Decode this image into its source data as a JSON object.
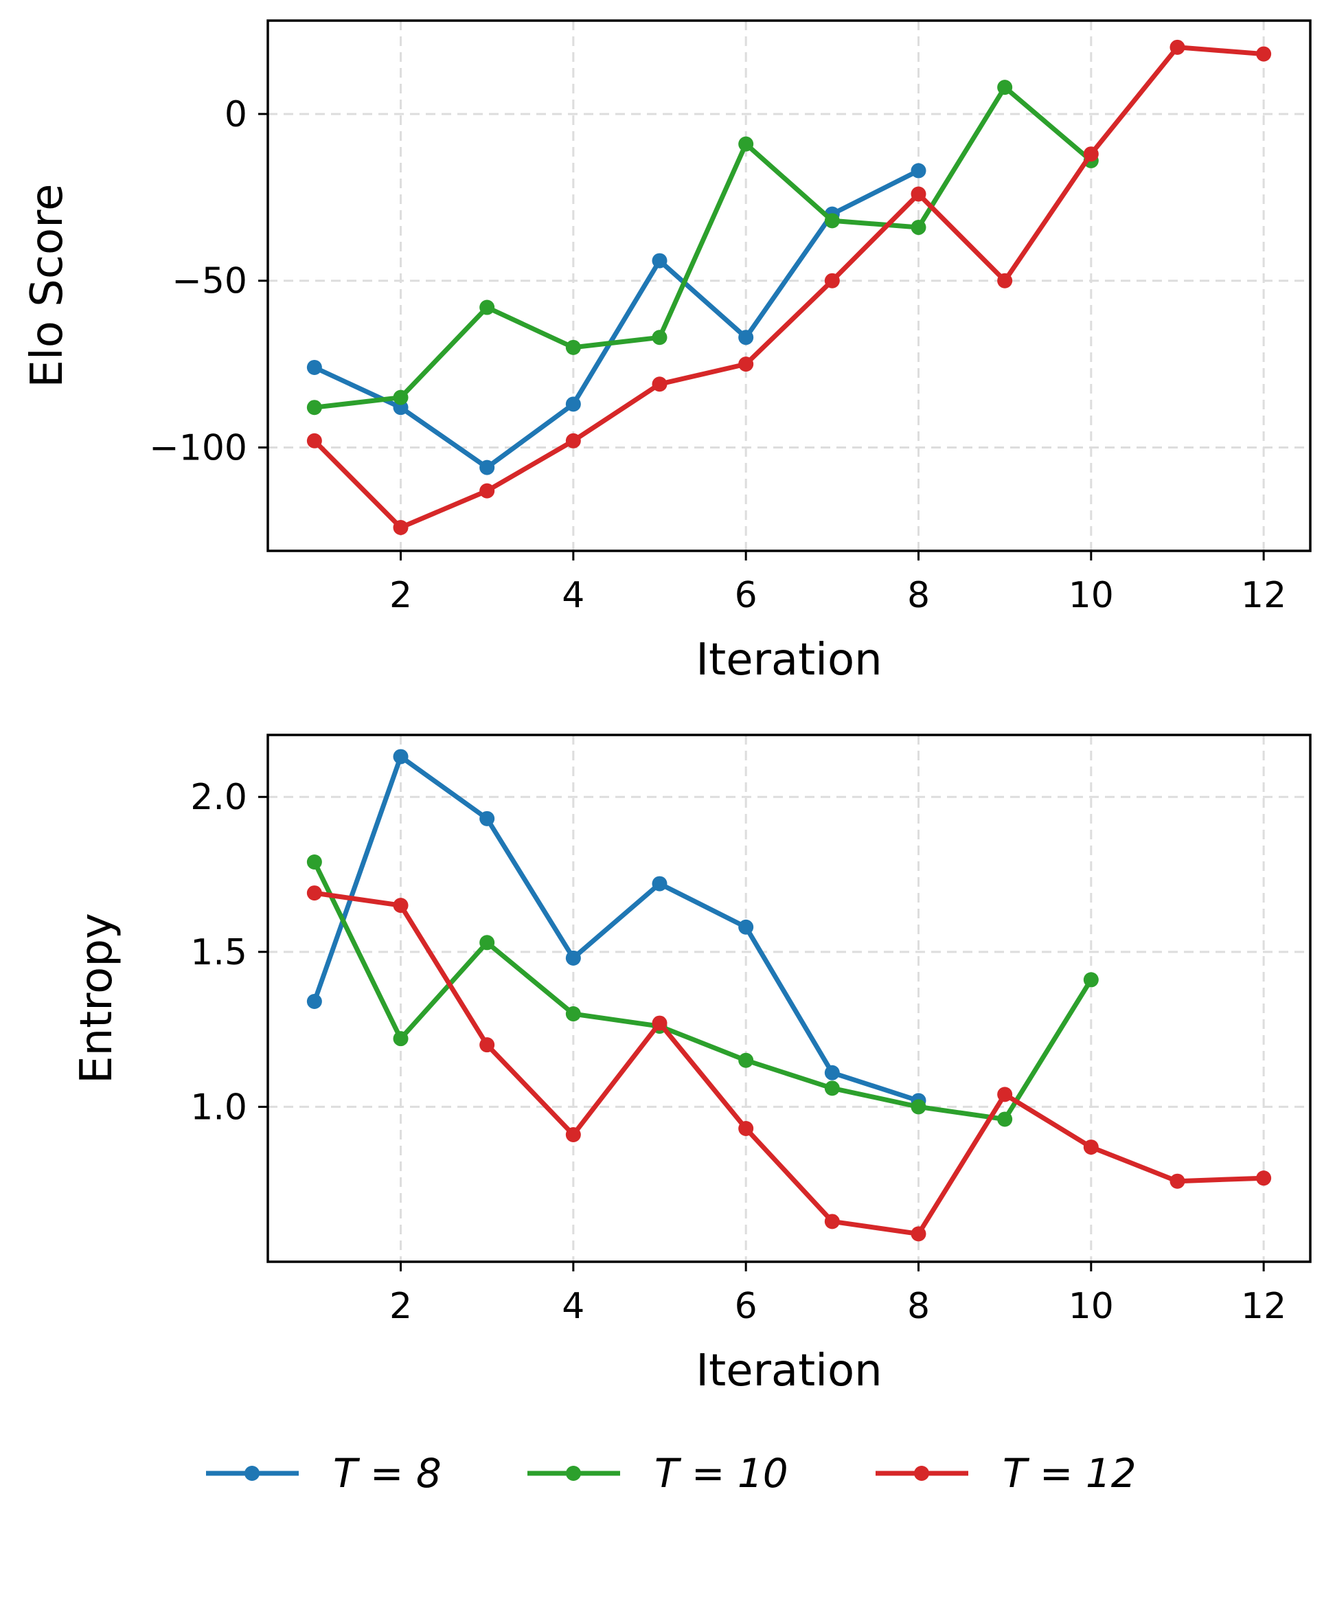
{
  "chart_data": [
    {
      "type": "line",
      "title": "",
      "xlabel": "Iteration",
      "ylabel": "Elo Score",
      "xlim": [
        0.46,
        12.54
      ],
      "ylim": [
        -131,
        28
      ],
      "xticks": [
        2,
        4,
        6,
        8,
        10,
        12
      ],
      "xtick_labels": [
        "2",
        "4",
        "6",
        "8",
        "10",
        "12"
      ],
      "yticks": [
        -100,
        -50,
        0
      ],
      "ytick_labels": [
        "−100",
        "−50",
        "0"
      ],
      "grid": true,
      "series": [
        {
          "name": "T = 8",
          "color": "#1f77b4",
          "x": [
            1,
            2,
            3,
            4,
            5,
            6,
            7,
            8
          ],
          "y": [
            -76,
            -88,
            -106,
            -87,
            -44,
            -67,
            -30,
            -17
          ]
        },
        {
          "name": "T = 10",
          "color": "#2ca02c",
          "x": [
            1,
            2,
            3,
            4,
            5,
            6,
            7,
            8,
            9,
            10
          ],
          "y": [
            -88,
            -85,
            -58,
            -70,
            -67,
            -9,
            -32,
            -34,
            8,
            -14
          ]
        },
        {
          "name": "T = 12",
          "color": "#d62728",
          "x": [
            1,
            2,
            3,
            4,
            5,
            6,
            7,
            8,
            9,
            10,
            11,
            12
          ],
          "y": [
            -98,
            -124,
            -113,
            -98,
            -81,
            -75,
            -50,
            -24,
            -50,
            -12,
            20,
            18
          ]
        }
      ]
    },
    {
      "type": "line",
      "title": "",
      "xlabel": "Iteration",
      "ylabel": "Entropy",
      "xlim": [
        0.46,
        12.54
      ],
      "ylim": [
        0.5,
        2.2
      ],
      "xticks": [
        2,
        4,
        6,
        8,
        10,
        12
      ],
      "xtick_labels": [
        "2",
        "4",
        "6",
        "8",
        "10",
        "12"
      ],
      "yticks": [
        1.0,
        1.5,
        2.0
      ],
      "ytick_labels": [
        "1.0",
        "1.5",
        "2.0"
      ],
      "grid": true,
      "series": [
        {
          "name": "T = 8",
          "color": "#1f77b4",
          "x": [
            1,
            2,
            3,
            4,
            5,
            6,
            7,
            8
          ],
          "y": [
            1.34,
            2.13,
            1.93,
            1.48,
            1.72,
            1.58,
            1.11,
            1.02
          ]
        },
        {
          "name": "T = 10",
          "color": "#2ca02c",
          "x": [
            1,
            2,
            3,
            4,
            5,
            6,
            7,
            8,
            9,
            10
          ],
          "y": [
            1.79,
            1.22,
            1.53,
            1.3,
            1.26,
            1.15,
            1.06,
            1.0,
            0.96,
            1.41
          ]
        },
        {
          "name": "T = 12",
          "color": "#d62728",
          "x": [
            1,
            2,
            3,
            4,
            5,
            6,
            7,
            8,
            9,
            10,
            11,
            12
          ],
          "y": [
            1.69,
            1.65,
            1.2,
            0.91,
            1.27,
            0.93,
            0.63,
            0.59,
            1.04,
            0.87,
            0.76,
            0.77
          ]
        }
      ]
    }
  ],
  "legend": {
    "placement": "bottom-center",
    "entries": [
      {
        "label": "T = 8",
        "color": "#1f77b4"
      },
      {
        "label": "T = 10",
        "color": "#2ca02c"
      },
      {
        "label": "T = 12",
        "color": "#d62728"
      }
    ]
  }
}
